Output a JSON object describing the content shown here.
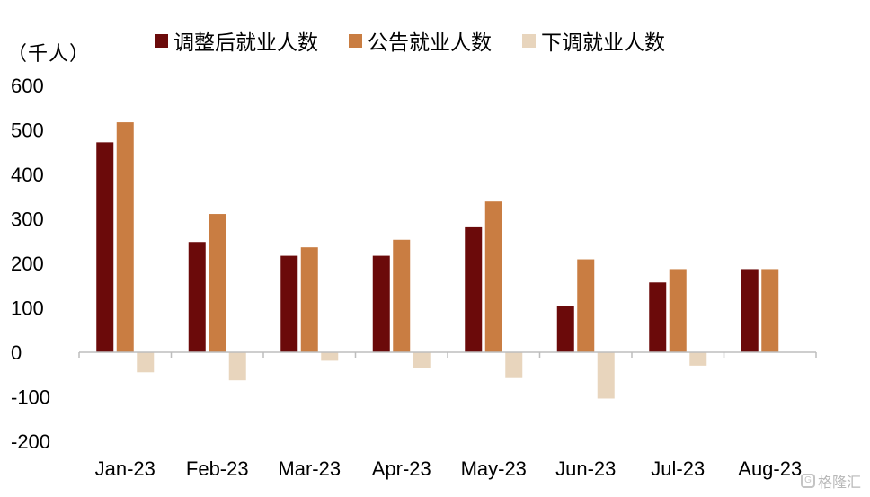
{
  "chart_data": {
    "type": "bar",
    "unit_label": "（千人）",
    "categories": [
      "Jan-23",
      "Feb-23",
      "Mar-23",
      "Apr-23",
      "May-23",
      "Jun-23",
      "Jul-23",
      "Aug-23"
    ],
    "series": [
      {
        "name": "调整后就业人数",
        "color": "#6b0a0a",
        "values": [
          472,
          248,
          217,
          217,
          281,
          105,
          157,
          187
        ]
      },
      {
        "name": "公告就业人数",
        "color": "#c97d42",
        "values": [
          517,
          311,
          236,
          253,
          339,
          209,
          187,
          187
        ]
      },
      {
        "name": "下调就业人数",
        "color": "#e8d5bd",
        "values": [
          -45,
          -63,
          -19,
          -36,
          -58,
          -104,
          -30,
          0
        ]
      }
    ],
    "ylim": [
      -200,
      600
    ],
    "yticks": [
      -200,
      -100,
      0,
      100,
      200,
      300,
      400,
      500,
      600
    ],
    "legend_position": "top",
    "grid": false
  },
  "watermark": {
    "icon": "G",
    "text": "格隆汇"
  }
}
